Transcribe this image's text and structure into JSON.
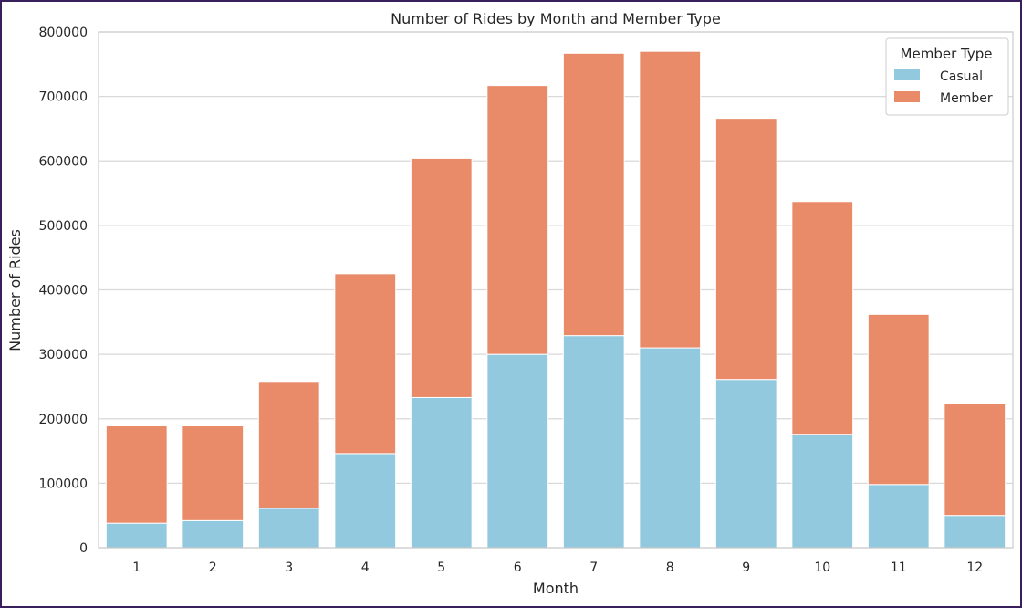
{
  "chart_data": {
    "type": "bar",
    "stacked": true,
    "title": "Number of Rides by Month and Member Type",
    "xlabel": "Month",
    "ylabel": "Number of Rides",
    "categories": [
      "1",
      "2",
      "3",
      "4",
      "5",
      "6",
      "7",
      "8",
      "9",
      "10",
      "11",
      "12"
    ],
    "series": [
      {
        "name": "Casual",
        "color": "#92c9de",
        "values": [
          38000,
          42000,
          61000,
          146000,
          233000,
          300000,
          329000,
          310000,
          261000,
          176000,
          98000,
          50000
        ]
      },
      {
        "name": "Member",
        "color": "#e98a68",
        "values": [
          151000,
          147000,
          197000,
          279000,
          371000,
          417000,
          438000,
          460000,
          405000,
          361000,
          264000,
          173000
        ]
      }
    ],
    "totals": [
      189000,
      189000,
      258000,
      425000,
      604000,
      717000,
      767000,
      770000,
      666000,
      537000,
      362000,
      223000
    ],
    "ylim": [
      0,
      800000
    ],
    "yticks": [
      "0",
      "100000",
      "200000",
      "300000",
      "400000",
      "500000",
      "600000",
      "700000",
      "800000"
    ],
    "grid": true,
    "legend": {
      "title": "Member Type",
      "position": "top-right"
    }
  }
}
